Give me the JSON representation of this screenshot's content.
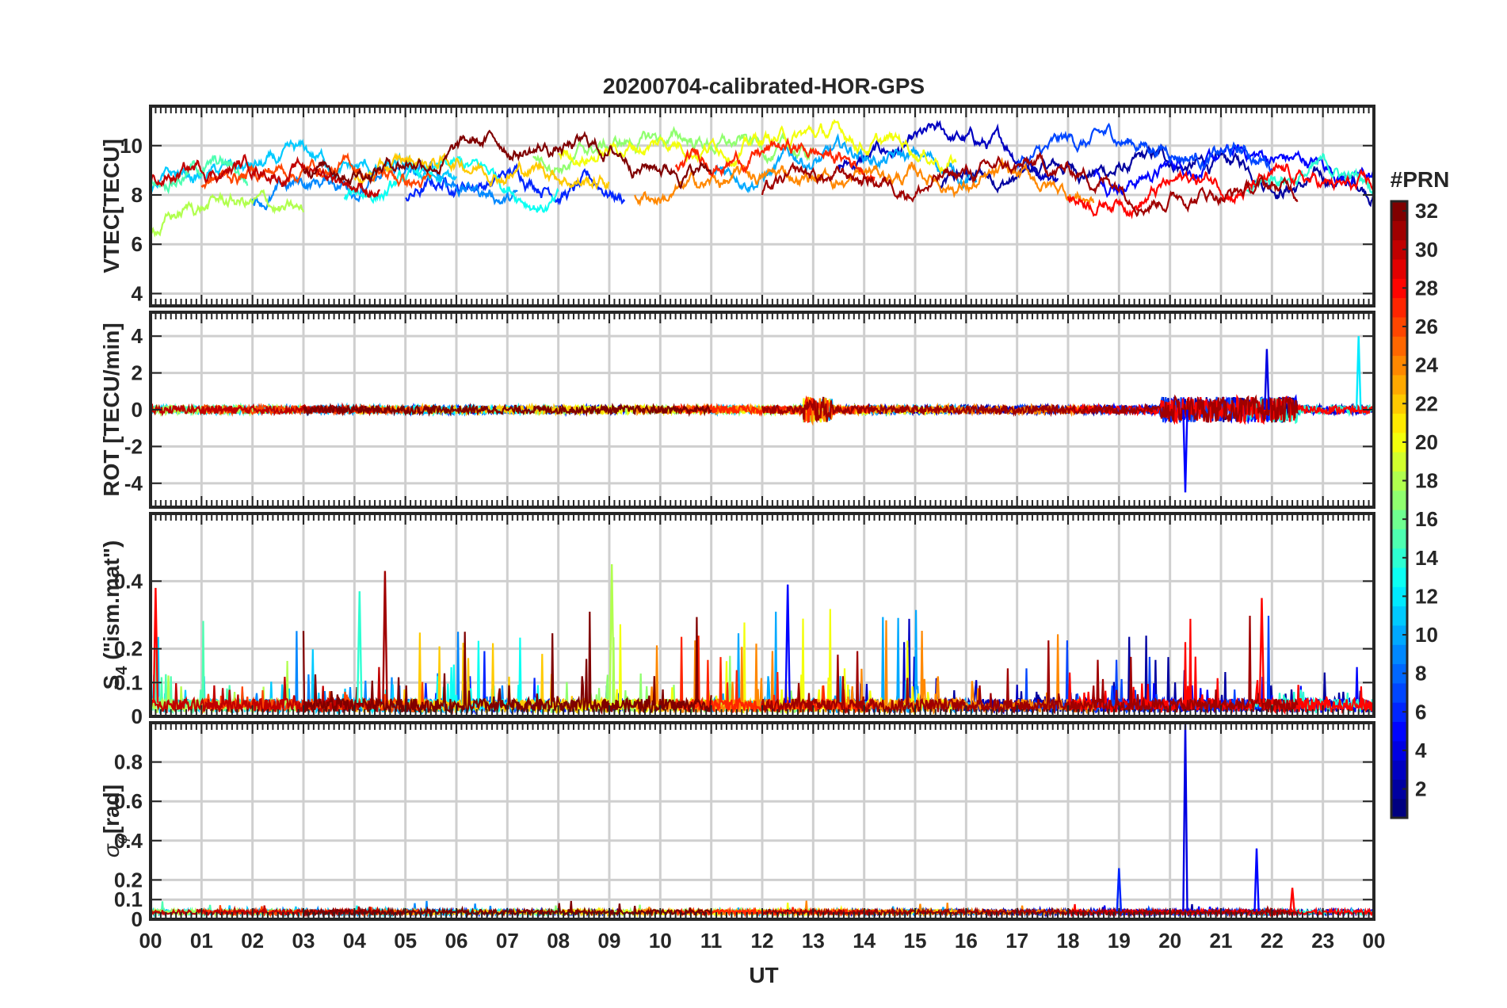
{
  "chart_data": {
    "type": "line",
    "title": "20200704-calibrated-HOR-GPS",
    "xlabel": "UT",
    "x_ticks": [
      "00",
      "01",
      "02",
      "03",
      "04",
      "05",
      "06",
      "07",
      "08",
      "09",
      "10",
      "11",
      "12",
      "13",
      "14",
      "15",
      "16",
      "17",
      "18",
      "19",
      "20",
      "21",
      "22",
      "23",
      "00"
    ],
    "xlim": [
      0,
      24
    ],
    "grid": true,
    "panels": [
      {
        "id": "vtec",
        "ylabel": "VTEC[TECU]",
        "ylim": [
          3.5,
          11.6
        ],
        "yticks": [
          4,
          6,
          8,
          10
        ],
        "ytick_labels": [
          "4",
          "6",
          "8",
          "10"
        ],
        "baseline": 8.2,
        "spread": 1.3,
        "description_series": "24-hour vertical TEC per PRN, mostly 6-11 TECU"
      },
      {
        "id": "rot",
        "ylabel": "ROT [TECU/min]",
        "ylim": [
          -5.3,
          5.3
        ],
        "yticks": [
          -4,
          -2,
          0,
          2,
          4
        ],
        "ytick_labels": [
          "-4",
          "-2",
          "0",
          "2",
          "4"
        ],
        "baseline": 0,
        "spread": 0.15
      },
      {
        "id": "s4",
        "ylabel": "S4 (\"ism.mat\")",
        "ylabel_main": "S",
        "ylabel_sub": "4",
        "ylabel_rest": " (\"ism.mat\")",
        "ylim": [
          0,
          0.6
        ],
        "yticks": [
          0,
          0.1,
          0.2,
          0.4
        ],
        "ytick_labels": [
          "0",
          "0.1",
          "0.2",
          "0.4"
        ],
        "baseline": 0.04,
        "spread": 0.03
      },
      {
        "id": "sigma_phi",
        "ylabel": "σφ[rad]",
        "ylabel_sigma": "σ",
        "ylabel_sub": "φ",
        "ylabel_rest": "[rad]",
        "ylim": [
          0,
          1.0
        ],
        "yticks": [
          0,
          0.1,
          0.2,
          0.4,
          0.6,
          0.8
        ],
        "ytick_labels": [
          "0",
          "0.1",
          "0.2",
          "0.4",
          "0.6",
          "0.8"
        ],
        "baseline": 0.04,
        "spread": 0.01
      }
    ],
    "colorbar": {
      "label": "#PRN",
      "range": [
        1,
        32
      ],
      "ticks": [
        2,
        4,
        6,
        8,
        10,
        12,
        14,
        16,
        18,
        20,
        22,
        24,
        26,
        28,
        30,
        32
      ],
      "tick_labels": [
        "2",
        "4",
        "6",
        "8",
        "10",
        "12",
        "14",
        "16",
        "18",
        "20",
        "22",
        "24",
        "26",
        "28",
        "30",
        "32"
      ],
      "colormap": "jet"
    },
    "series": [
      {
        "prn": 2,
        "passes": [
          [
            15.5,
            24
          ]
        ],
        "vtec_offset": 0.2
      },
      {
        "prn": 3,
        "passes": [
          [
            13.5,
            17.8
          ]
        ],
        "vtec_offset": 1.5
      },
      {
        "prn": 5,
        "passes": [
          [
            18.5,
            24
          ]
        ],
        "vtec_offset": 0.8
      },
      {
        "prn": 6,
        "passes": [
          [
            5.0,
            9.3
          ]
        ],
        "vtec_offset": -0.3
      },
      {
        "prn": 7,
        "passes": [
          [
            17.0,
            22.0
          ]
        ],
        "vtec_offset": 1.8
      },
      {
        "prn": 9,
        "passes": [
          [
            2.0,
            7.2
          ]
        ],
        "vtec_offset": -0.5
      },
      {
        "prn": 10,
        "passes": [
          [
            11.0,
            16.2
          ]
        ],
        "vtec_offset": 0.9
      },
      {
        "prn": 11,
        "passes": [
          [
            0.0,
            6.0
          ]
        ],
        "vtec_offset": 0.0
      },
      {
        "prn": 13,
        "passes": [
          [
            3.8,
            8.0
          ]
        ],
        "vtec_offset": -0.6
      },
      {
        "prn": 14,
        "passes": [
          [
            21.5,
            24
          ]
        ],
        "vtec_offset": 0.0
      },
      {
        "prn": 15,
        "passes": [
          [
            0.0,
            1.9
          ]
        ],
        "vtec_offset": 0.6
      },
      {
        "prn": 17,
        "passes": [
          [
            7.5,
            13.0
          ]
        ],
        "vtec_offset": 2.0
      },
      {
        "prn": 18,
        "passes": [
          [
            0.0,
            3.0
          ]
        ],
        "vtec_offset": -2.2
      },
      {
        "prn": 20,
        "passes": [
          [
            8.0,
            15.8
          ]
        ],
        "vtec_offset": 2.4
      },
      {
        "prn": 22,
        "passes": [
          [
            4.0,
            9.0
          ]
        ],
        "vtec_offset": 0.7
      },
      {
        "prn": 24,
        "passes": [
          [
            9.5,
            18.5
          ]
        ],
        "vtec_offset": -0.4
      },
      {
        "prn": 26,
        "passes": [
          [
            1.0,
            5.5
          ]
        ],
        "vtec_offset": 0.3
      },
      {
        "prn": 27,
        "passes": [
          [
            10.3,
            14.2
          ]
        ],
        "vtec_offset": 1.4
      },
      {
        "prn": 28,
        "passes": [
          [
            18.0,
            24
          ]
        ],
        "vtec_offset": -0.7
      },
      {
        "prn": 30,
        "passes": [
          [
            0.0,
            4.5
          ]
        ],
        "vtec_offset": 0.5
      },
      {
        "prn": 31,
        "passes": [
          [
            12.0,
            22.5
          ]
        ],
        "vtec_offset": -0.2
      },
      {
        "prn": 32,
        "passes": [
          [
            3.0,
            11.0
          ]
        ],
        "vtec_offset": 1.6
      }
    ],
    "spikes": [
      {
        "panel": "s4",
        "t": 4.6,
        "v": 0.43,
        "prn": 31
      },
      {
        "panel": "s4",
        "t": 9.05,
        "v": 0.45,
        "prn": 18
      },
      {
        "panel": "s4",
        "t": 12.5,
        "v": 0.39,
        "prn": 5
      },
      {
        "panel": "s4",
        "t": 0.1,
        "v": 0.38,
        "prn": 28
      },
      {
        "panel": "s4",
        "t": 21.8,
        "v": 0.35,
        "prn": 28
      },
      {
        "panel": "s4",
        "t": 4.1,
        "v": 0.37,
        "prn": 14
      },
      {
        "panel": "rot",
        "t": 20.3,
        "v": -4.5,
        "prn": 5
      },
      {
        "panel": "rot",
        "t": 21.9,
        "v": 3.3,
        "prn": 4
      },
      {
        "panel": "rot",
        "t": 23.7,
        "v": 4.0,
        "prn": 12
      },
      {
        "panel": "sigma_phi",
        "t": 20.3,
        "v": 1.0,
        "prn": 4
      },
      {
        "panel": "sigma_phi",
        "t": 19.0,
        "v": 0.26,
        "prn": 6
      },
      {
        "panel": "sigma_phi",
        "t": 21.7,
        "v": 0.36,
        "prn": 5
      },
      {
        "panel": "sigma_phi",
        "t": 22.4,
        "v": 0.16,
        "prn": 28
      }
    ]
  }
}
